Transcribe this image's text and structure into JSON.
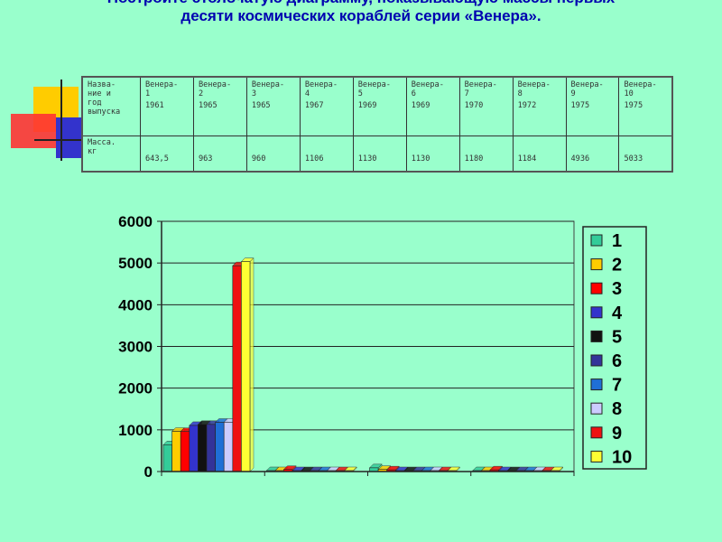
{
  "title_lines": [
    "Постройте столбчатую диаграмму, показывающую массы первых",
    "десяти космических кораблей серии «Венера»."
  ],
  "table": {
    "header_label": "Назва-\nние и\nгод\nвыпуска",
    "row_label": "Масса.\nкг",
    "columns": [
      {
        "name": "Венера-\n1",
        "year": "1961",
        "mass": "643,5"
      },
      {
        "name": "Венера-\n2",
        "year": "1965",
        "mass": "963"
      },
      {
        "name": "Венера-\n3",
        "year": "1965",
        "mass": "960"
      },
      {
        "name": "Венера-\n4",
        "year": "1967",
        "mass": "1106"
      },
      {
        "name": "Венера-\n5",
        "year": "1969",
        "mass": "1130"
      },
      {
        "name": "Венера-\n6",
        "year": "1969",
        "mass": "1130"
      },
      {
        "name": "Венера-\n7",
        "year": "1970",
        "mass": "1180"
      },
      {
        "name": "Венера-\n8",
        "year": "1972",
        "mass": "1184"
      },
      {
        "name": "Венера-\n9",
        "year": "1975",
        "mass": "4936"
      },
      {
        "name": "Венера-\n10",
        "year": "1975",
        "mass": "5033"
      }
    ]
  },
  "chart_data": {
    "type": "bar",
    "categories": [
      "",
      "",
      "",
      ""
    ],
    "ylim": [
      0,
      6000
    ],
    "yticks": [
      0,
      1000,
      2000,
      3000,
      4000,
      5000,
      6000
    ],
    "grid": true,
    "legend_placement": "right",
    "series": [
      {
        "name": "1",
        "color": "#33cc99",
        "values": [
          643.5,
          20,
          90,
          5
        ]
      },
      {
        "name": "2",
        "color": "#ffcc00",
        "values": [
          963,
          10,
          50,
          10
        ]
      },
      {
        "name": "3",
        "color": "#ff0000",
        "values": [
          960,
          50,
          40,
          40
        ]
      },
      {
        "name": "4",
        "color": "#3333cc",
        "values": [
          1106,
          5,
          5,
          5
        ]
      },
      {
        "name": "5",
        "color": "#111111",
        "values": [
          1130,
          5,
          5,
          5
        ]
      },
      {
        "name": "6",
        "color": "#333399",
        "values": [
          1130,
          5,
          5,
          5
        ]
      },
      {
        "name": "7",
        "color": "#1f6fd6",
        "values": [
          1180,
          5,
          5,
          5
        ]
      },
      {
        "name": "8",
        "color": "#ccccff",
        "values": [
          1184,
          5,
          5,
          5
        ]
      },
      {
        "name": "9",
        "color": "#ee1111",
        "values": [
          4936,
          5,
          5,
          5
        ]
      },
      {
        "name": "10",
        "color": "#ffff33",
        "values": [
          5033,
          5,
          5,
          5
        ]
      }
    ]
  },
  "colors": {
    "background": "#99ffcc",
    "title": "#0000b0",
    "plot_bg": "#99ffcc"
  }
}
